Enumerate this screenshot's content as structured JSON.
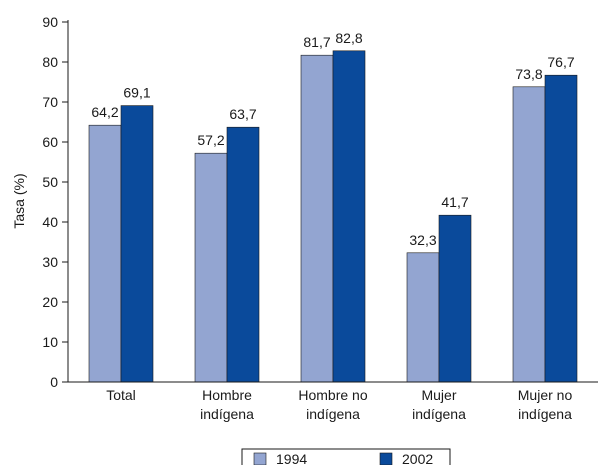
{
  "chart_data": {
    "type": "bar",
    "categories": [
      [
        "Total"
      ],
      [
        "Hombre",
        "indígena"
      ],
      [
        "Hombre no",
        "indígena"
      ],
      [
        "Mujer",
        "indígena"
      ],
      [
        "Mujer no",
        "indígena"
      ]
    ],
    "series": [
      {
        "name": "1994",
        "values": [
          64.2,
          57.2,
          81.7,
          32.3,
          73.8
        ],
        "labels": [
          "64,2",
          "57,2",
          "81,7",
          "32,3",
          "73,8"
        ],
        "color": "#93a5d1"
      },
      {
        "name": "2002",
        "values": [
          69.1,
          63.7,
          82.8,
          41.7,
          76.7
        ],
        "labels": [
          "69,1",
          "63,7",
          "82,8",
          "41,7",
          "76,7"
        ],
        "color": "#0a4a9b"
      }
    ],
    "ylabel": "Tasa (%)",
    "ylim": [
      0,
      90
    ],
    "yticks": [
      0,
      10,
      20,
      30,
      40,
      50,
      60,
      70,
      80,
      90
    ],
    "grid": false,
    "legend_position": "bottom"
  }
}
